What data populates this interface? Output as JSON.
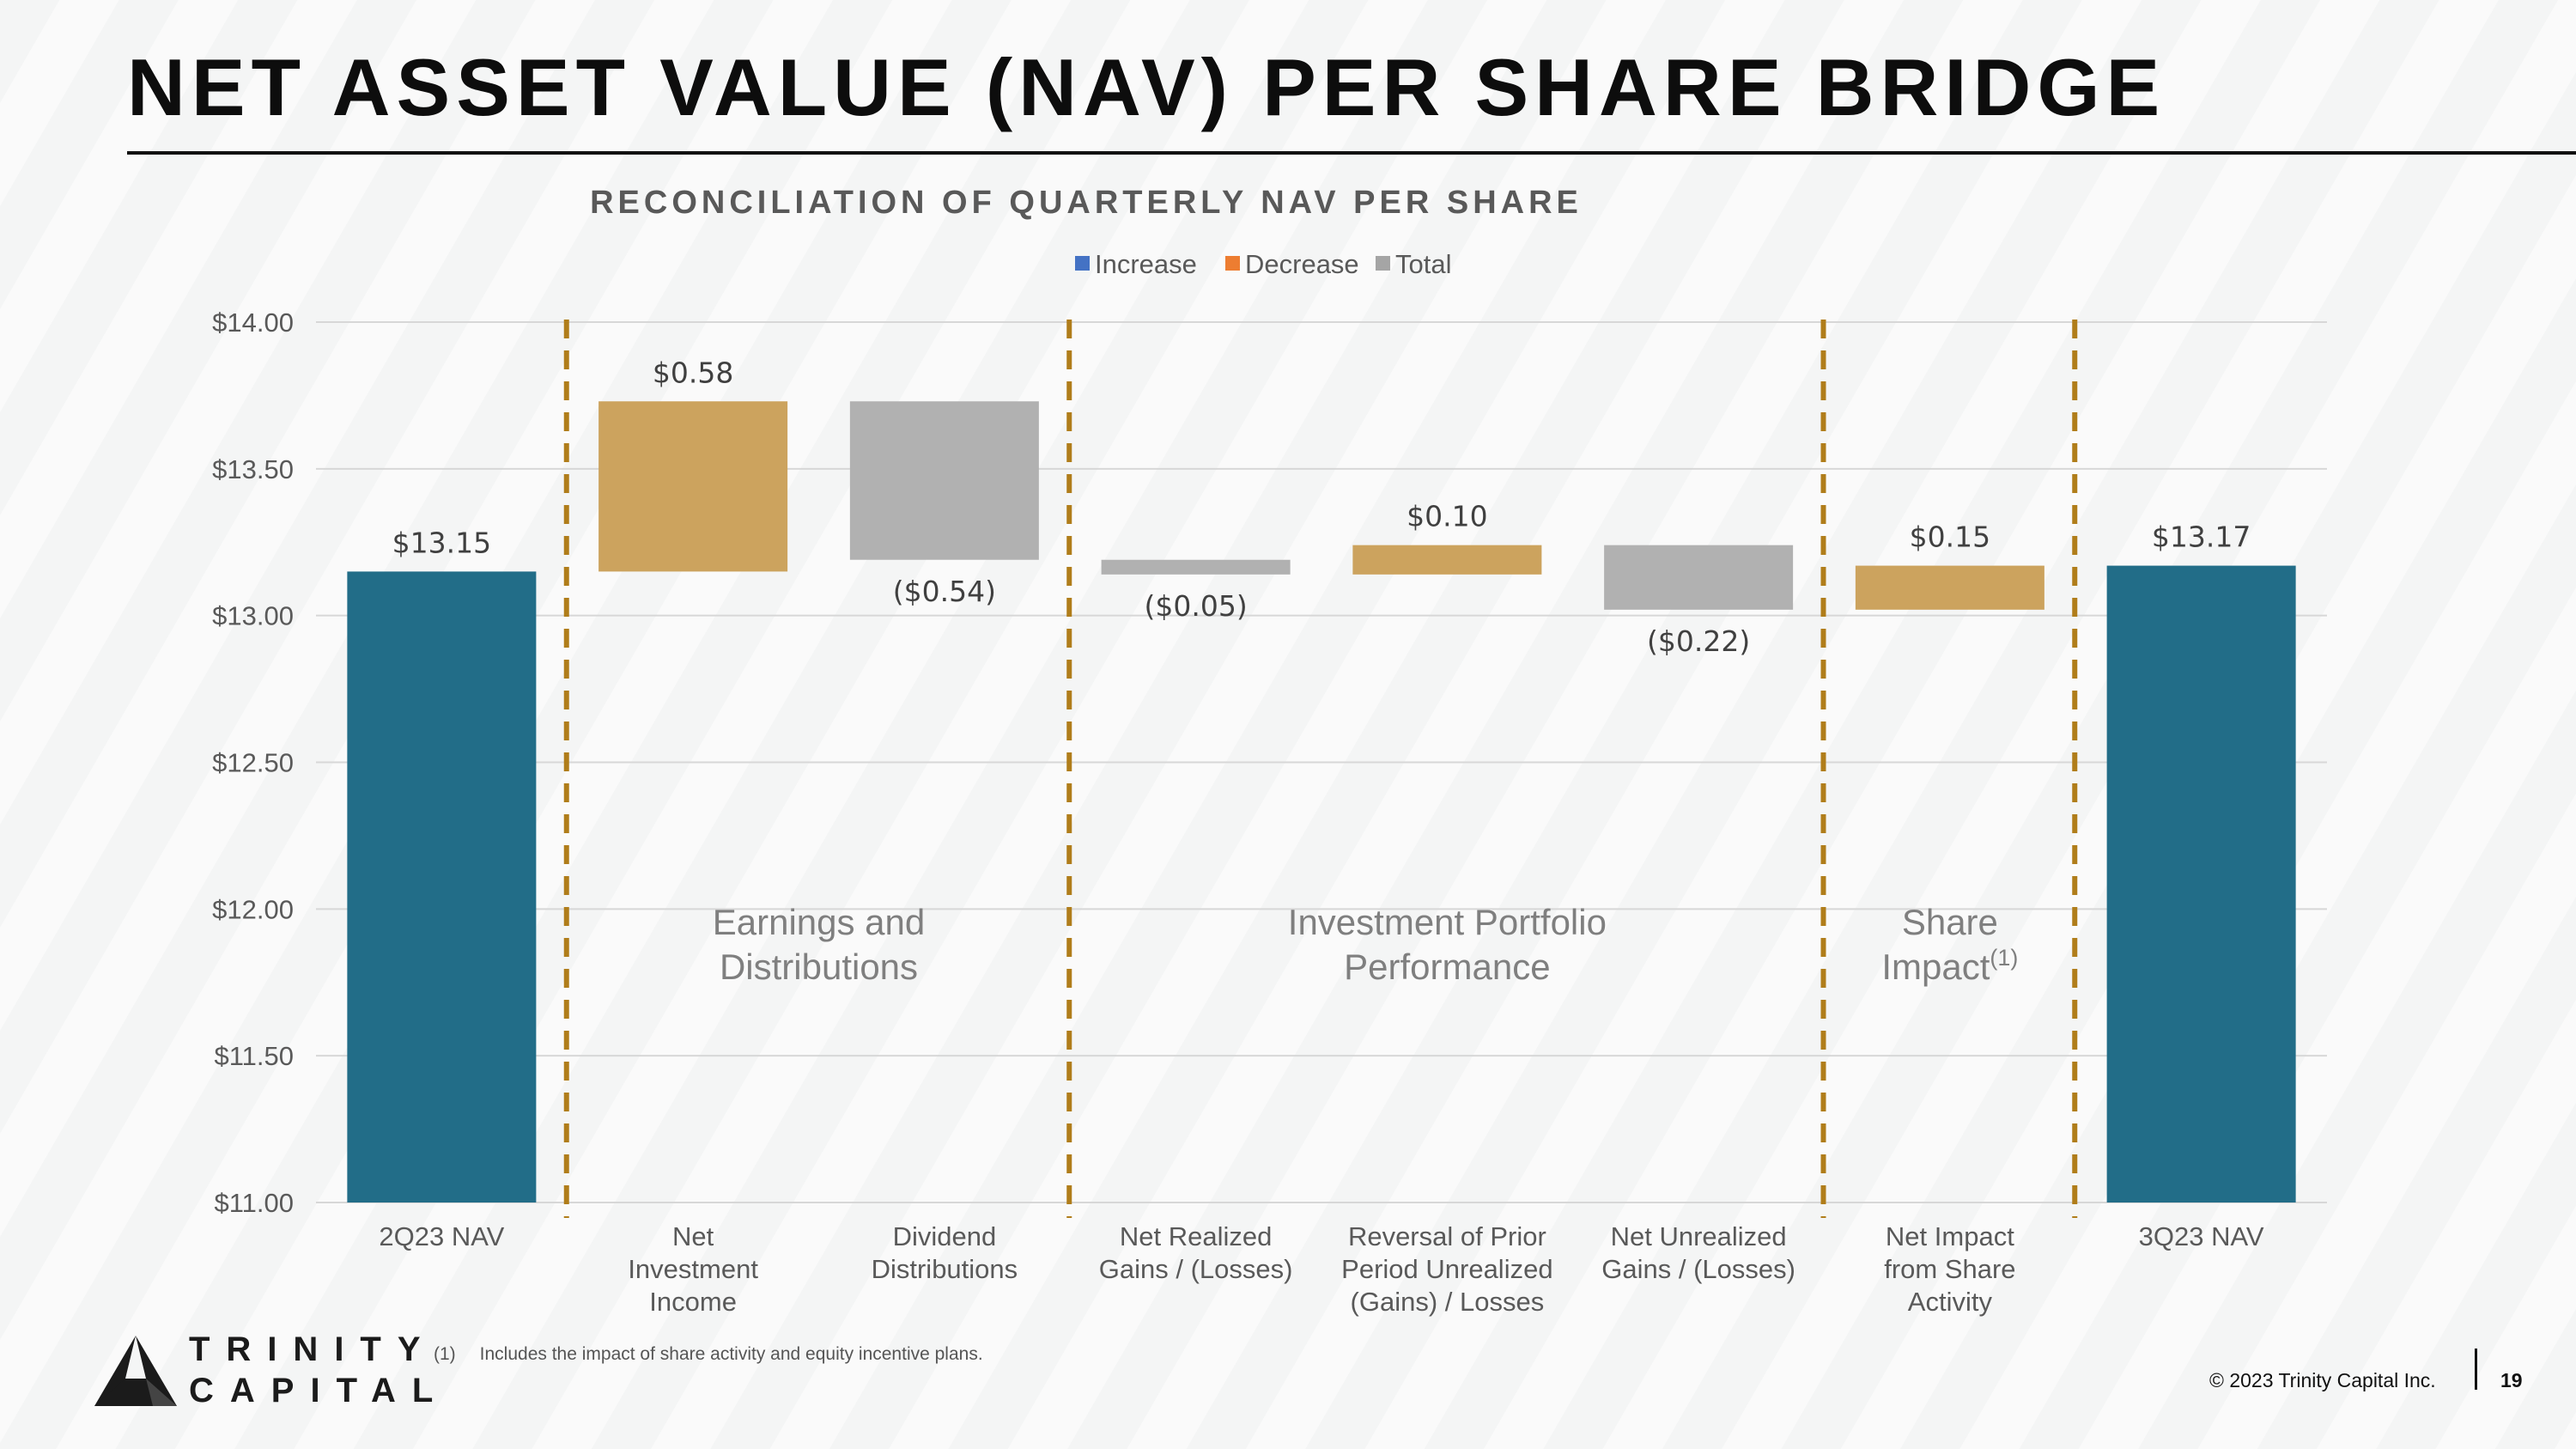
{
  "page": {
    "title": "NET ASSET VALUE (NAV) PER SHARE BRIDGE",
    "footnote_number": "(1)",
    "footnote_text": "Includes the impact of share activity and equity incentive plans.",
    "copyright": "© 2023 Trinity Capital Inc.",
    "page_number": "19",
    "logo_line1": "TRINITY",
    "logo_line2": "CAPITAL"
  },
  "chart_data": {
    "type": "bar",
    "subtype": "waterfall",
    "title": "RECONCILIATION OF QUARTERLY NAV PER SHARE",
    "legend": [
      {
        "name": "Increase",
        "color": "#4472c4"
      },
      {
        "name": "Decrease",
        "color": "#ed7d31"
      },
      {
        "name": "Total",
        "color": "#a5a5a5"
      }
    ],
    "legend_position": "top",
    "ylim": [
      11.0,
      14.0
    ],
    "yticks": [
      "$11.00",
      "$11.50",
      "$12.00",
      "$12.50",
      "$13.00",
      "$13.50",
      "$14.00"
    ],
    "ytick_values": [
      11.0,
      11.5,
      12.0,
      12.5,
      13.0,
      13.5,
      14.0
    ],
    "grid": true,
    "colors": {
      "total": "#226d88",
      "increase": "#cca35e",
      "decrease": "#b1b1b1",
      "divider": "#b07d1a"
    },
    "bars": [
      {
        "category": [
          "2Q23 NAV"
        ],
        "kind": "total",
        "start": 11.0,
        "end": 13.15,
        "label": "$13.15"
      },
      {
        "category": [
          "Net",
          "Investment",
          "Income"
        ],
        "kind": "increase",
        "start": 13.15,
        "end": 13.73,
        "label": "$0.58"
      },
      {
        "category": [
          "Dividend",
          "Distributions"
        ],
        "kind": "decrease",
        "start": 13.73,
        "end": 13.19,
        "label": "($0.54)"
      },
      {
        "category": [
          "Net Realized",
          "Gains / (Losses)"
        ],
        "kind": "decrease",
        "start": 13.19,
        "end": 13.14,
        "label": "($0.05)"
      },
      {
        "category": [
          "Reversal of Prior",
          "Period Unrealized",
          "(Gains) / Losses"
        ],
        "kind": "increase",
        "start": 13.14,
        "end": 13.24,
        "label": "$0.10"
      },
      {
        "category": [
          "Net Unrealized",
          "Gains / (Losses)"
        ],
        "kind": "decrease",
        "start": 13.24,
        "end": 13.02,
        "label": "($0.22)"
      },
      {
        "category": [
          "Net Impact",
          "from Share",
          "Activity"
        ],
        "kind": "increase",
        "start": 13.02,
        "end": 13.17,
        "label": "$0.15"
      },
      {
        "category": [
          "3Q23 NAV"
        ],
        "kind": "total",
        "start": 11.0,
        "end": 13.17,
        "label": "$13.17"
      }
    ],
    "dividers_after_index": [
      0,
      2,
      5,
      6
    ],
    "groups": [
      {
        "lines": [
          "Earnings and",
          "Distributions"
        ],
        "from": 1,
        "to": 2,
        "footnote": ""
      },
      {
        "lines": [
          "Investment Portfolio",
          "Performance"
        ],
        "from": 3,
        "to": 5,
        "footnote": ""
      },
      {
        "lines": [
          "Share",
          "Impact"
        ],
        "from": 6,
        "to": 6,
        "footnote": "(1)"
      }
    ]
  }
}
